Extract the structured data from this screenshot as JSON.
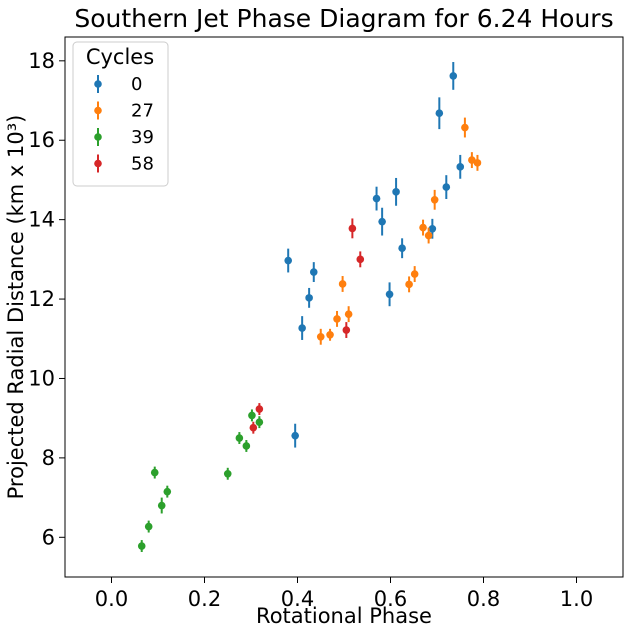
{
  "chart_data": {
    "type": "scatter",
    "title": "Southern Jet Phase Diagram for 6.24 Hours",
    "xlabel": "Rotational Phase",
    "ylabel": "Projected Radial Distance (km x 10³)",
    "xlim": [
      -0.1,
      1.1
    ],
    "ylim": [
      5.0,
      18.6
    ],
    "xticks": [
      0.0,
      0.2,
      0.4,
      0.6,
      0.8,
      1.0
    ],
    "xtick_labels": [
      "0.0",
      "0.2",
      "0.4",
      "0.6",
      "0.8",
      "1.0"
    ],
    "yticks": [
      6,
      8,
      10,
      12,
      14,
      16,
      18
    ],
    "ytick_labels": [
      "6",
      "8",
      "10",
      "12",
      "14",
      "16",
      "18"
    ],
    "grid": false,
    "legend": {
      "title": "Cycles",
      "position": "upper-left"
    },
    "series": [
      {
        "name": "0",
        "color": "#1f77b4",
        "points": [
          {
            "x": 0.38,
            "y": 12.97,
            "err": 0.3
          },
          {
            "x": 0.395,
            "y": 8.56,
            "err": 0.3
          },
          {
            "x": 0.41,
            "y": 11.27,
            "err": 0.3
          },
          {
            "x": 0.425,
            "y": 12.03,
            "err": 0.25
          },
          {
            "x": 0.435,
            "y": 12.68,
            "err": 0.25
          },
          {
            "x": 0.57,
            "y": 14.53,
            "err": 0.3
          },
          {
            "x": 0.582,
            "y": 13.95,
            "err": 0.35
          },
          {
            "x": 0.598,
            "y": 12.12,
            "err": 0.3
          },
          {
            "x": 0.612,
            "y": 14.7,
            "err": 0.35
          },
          {
            "x": 0.625,
            "y": 13.28,
            "err": 0.25
          },
          {
            "x": 0.69,
            "y": 13.77,
            "err": 0.25
          },
          {
            "x": 0.705,
            "y": 16.68,
            "err": 0.4
          },
          {
            "x": 0.72,
            "y": 14.82,
            "err": 0.3
          },
          {
            "x": 0.735,
            "y": 17.62,
            "err": 0.35
          },
          {
            "x": 0.75,
            "y": 15.33,
            "err": 0.3
          }
        ]
      },
      {
        "name": "27",
        "color": "#ff7f0e",
        "points": [
          {
            "x": 0.45,
            "y": 11.05,
            "err": 0.2
          },
          {
            "x": 0.47,
            "y": 11.1,
            "err": 0.15
          },
          {
            "x": 0.485,
            "y": 11.5,
            "err": 0.2
          },
          {
            "x": 0.497,
            "y": 12.38,
            "err": 0.2
          },
          {
            "x": 0.51,
            "y": 11.62,
            "err": 0.2
          },
          {
            "x": 0.64,
            "y": 12.37,
            "err": 0.2
          },
          {
            "x": 0.652,
            "y": 12.63,
            "err": 0.2
          },
          {
            "x": 0.67,
            "y": 13.8,
            "err": 0.2
          },
          {
            "x": 0.682,
            "y": 13.6,
            "err": 0.2
          },
          {
            "x": 0.695,
            "y": 14.5,
            "err": 0.25
          },
          {
            "x": 0.76,
            "y": 16.32,
            "err": 0.25
          },
          {
            "x": 0.775,
            "y": 15.5,
            "err": 0.2
          },
          {
            "x": 0.787,
            "y": 15.43,
            "err": 0.2
          }
        ]
      },
      {
        "name": "39",
        "color": "#2ca02c",
        "points": [
          {
            "x": 0.065,
            "y": 5.78,
            "err": 0.15
          },
          {
            "x": 0.08,
            "y": 6.27,
            "err": 0.15
          },
          {
            "x": 0.093,
            "y": 7.63,
            "err": 0.15
          },
          {
            "x": 0.108,
            "y": 6.8,
            "err": 0.2
          },
          {
            "x": 0.12,
            "y": 7.15,
            "err": 0.15
          },
          {
            "x": 0.25,
            "y": 7.6,
            "err": 0.15
          },
          {
            "x": 0.275,
            "y": 8.5,
            "err": 0.15
          },
          {
            "x": 0.29,
            "y": 8.3,
            "err": 0.15
          },
          {
            "x": 0.302,
            "y": 9.07,
            "err": 0.15
          },
          {
            "x": 0.318,
            "y": 8.9,
            "err": 0.15
          }
        ]
      },
      {
        "name": "58",
        "color": "#d62728",
        "points": [
          {
            "x": 0.305,
            "y": 8.76,
            "err": 0.15
          },
          {
            "x": 0.318,
            "y": 9.23,
            "err": 0.15
          },
          {
            "x": 0.505,
            "y": 11.22,
            "err": 0.2
          },
          {
            "x": 0.518,
            "y": 13.78,
            "err": 0.25
          },
          {
            "x": 0.535,
            "y": 13.0,
            "err": 0.2
          }
        ]
      }
    ]
  }
}
